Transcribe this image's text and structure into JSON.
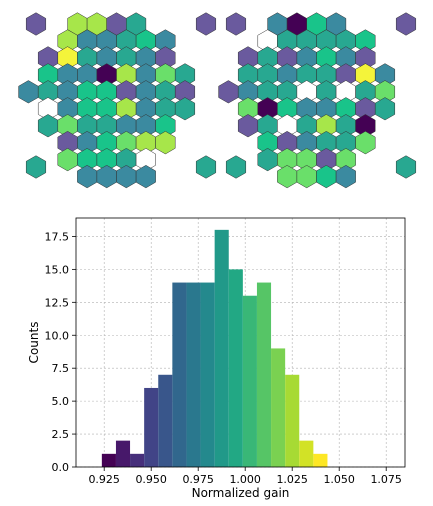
{
  "chart_data": [
    {
      "type": "heatmap",
      "layout": "hexagonal camera map",
      "colormap": "viridis",
      "grid_size": [
        11,
        9
      ],
      "colors": {
        "dark_purple": "#440154",
        "purple": "#6a5a9e",
        "teal_blue": "#3b8aa0",
        "teal": "#28a891",
        "green": "#19c48a",
        "light_green": "#6adf6a",
        "yellow_green": "#a7e64a",
        "yellow": "#f4f43a",
        "white": "#ffffff"
      }
    },
    {
      "type": "heatmap",
      "layout": "hexagonal camera map",
      "colormap": "viridis",
      "grid_size": [
        11,
        9
      ]
    },
    {
      "type": "bar",
      "chart_kind": "histogram",
      "colormap": "viridis",
      "bins": [
        {
          "x": 0.9275,
          "count": 1
        },
        {
          "x": 0.935,
          "count": 2
        },
        {
          "x": 0.9425,
          "count": 1
        },
        {
          "x": 0.95,
          "count": 6
        },
        {
          "x": 0.9575,
          "count": 7
        },
        {
          "x": 0.965,
          "count": 14
        },
        {
          "x": 0.9725,
          "count": 14
        },
        {
          "x": 0.98,
          "count": 14
        },
        {
          "x": 0.9875,
          "count": 18
        },
        {
          "x": 0.995,
          "count": 15
        },
        {
          "x": 1.0025,
          "count": 13
        },
        {
          "x": 1.01,
          "count": 14
        },
        {
          "x": 1.0175,
          "count": 9
        },
        {
          "x": 1.025,
          "count": 7
        },
        {
          "x": 1.0325,
          "count": 2
        },
        {
          "x": 1.04,
          "count": 1
        }
      ],
      "bin_width": 0.0075,
      "xlabel": "Normalized gain",
      "ylabel": "Counts",
      "xlim": [
        0.91,
        1.085
      ],
      "ylim": [
        0,
        18.9
      ],
      "xticks": [
        "0.925",
        "0.950",
        "0.975",
        "1.000",
        "1.025",
        "1.050",
        "1.075"
      ],
      "yticks": [
        "0.0",
        "2.5",
        "5.0",
        "7.5",
        "10.0",
        "12.5",
        "15.0",
        "17.5"
      ],
      "grid": true
    }
  ]
}
